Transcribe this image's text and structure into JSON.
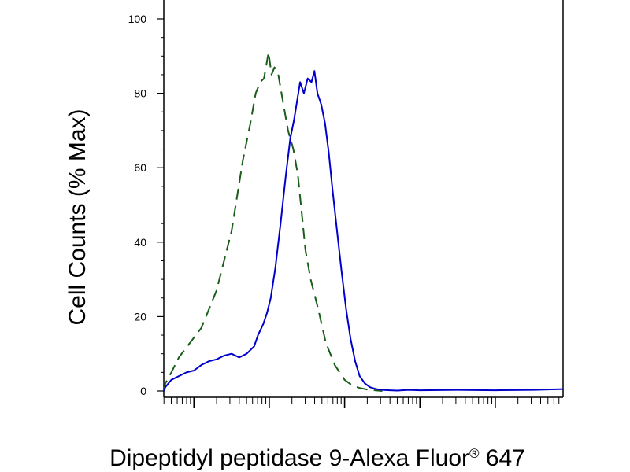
{
  "chart_data": {
    "type": "line",
    "title": "",
    "xlabel": "Dipeptidyl peptidase 9-Alexa Fluor",
    "xlabel_sup": "®",
    "xlabel_tail": " 647",
    "ylabel": "Cell Counts (% Max)",
    "xscale": "log",
    "xlim": [
      0.6,
      5.9
    ],
    "ylim": [
      0,
      100
    ],
    "yticks": [
      "0",
      "20",
      "40",
      "60",
      "80",
      "100"
    ],
    "grid": false,
    "series": [
      {
        "style": "dashed",
        "color": "#1a5e1a",
        "x": [
          0.6,
          0.62,
          0.7,
          0.8,
          0.95,
          1.1,
          1.3,
          1.5,
          1.65,
          1.75,
          1.82,
          1.88,
          1.93,
          1.99,
          2.03,
          2.07,
          2.12,
          2.18,
          2.25,
          2.32,
          2.38,
          2.43,
          2.48,
          2.55,
          2.65,
          2.75,
          2.87,
          3.0,
          3.1,
          3.2,
          3.3,
          3.4,
          3.5
        ],
        "y": [
          0,
          2,
          5,
          9,
          13,
          17,
          27,
          43,
          62,
          72,
          80,
          83,
          84,
          91,
          85,
          87,
          85,
          78,
          70,
          65,
          58,
          48,
          38,
          30,
          22,
          13,
          7,
          3,
          1.5,
          0.8,
          0.4,
          0.2,
          0
        ]
      },
      {
        "style": "solid",
        "color": "#0000cc",
        "x": [
          0.6,
          0.62,
          0.7,
          0.8,
          0.9,
          1.0,
          1.1,
          1.2,
          1.3,
          1.4,
          1.5,
          1.6,
          1.7,
          1.8,
          1.85,
          1.92,
          1.97,
          2.02,
          2.08,
          2.15,
          2.22,
          2.28,
          2.33,
          2.37,
          2.41,
          2.46,
          2.51,
          2.56,
          2.6,
          2.64,
          2.69,
          2.74,
          2.79,
          2.84,
          2.9,
          2.96,
          3.02,
          3.08,
          3.14,
          3.2,
          3.27,
          3.34,
          3.42,
          3.5,
          3.6,
          3.7,
          3.85,
          4.0,
          4.5,
          5.0,
          5.5,
          5.9
        ],
        "y": [
          0,
          1,
          3,
          4,
          5,
          5.5,
          7,
          8,
          8.5,
          9.5,
          10,
          9,
          10,
          12,
          15,
          18,
          21,
          25,
          33,
          45,
          58,
          68,
          73,
          78,
          83,
          80,
          84,
          83,
          86,
          80,
          77,
          72,
          64,
          54,
          43,
          32,
          22,
          14,
          8,
          4,
          2,
          1,
          0.5,
          0.3,
          0.2,
          0.1,
          0.3,
          0.2,
          0.3,
          0.2,
          0.3,
          0.5
        ]
      }
    ]
  }
}
